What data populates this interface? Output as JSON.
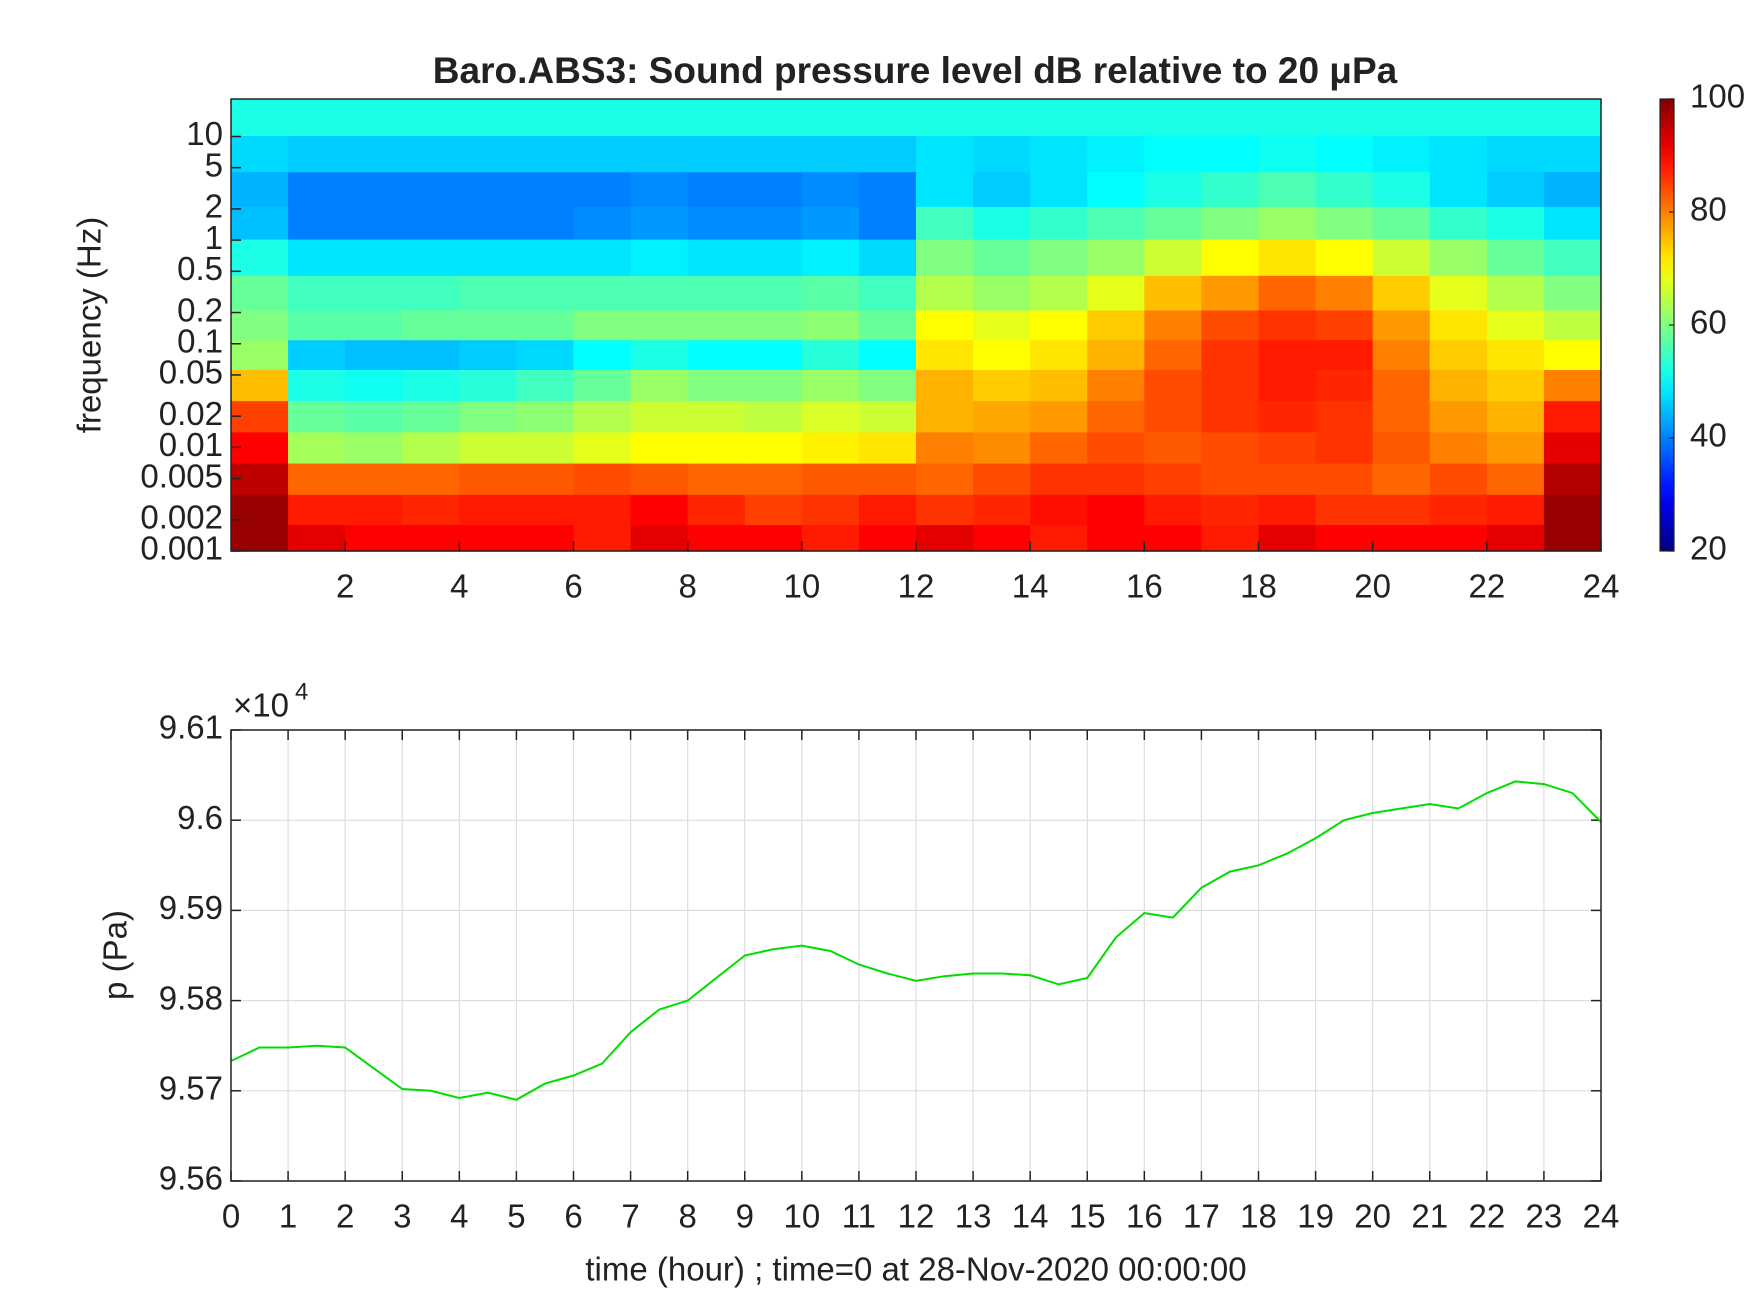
{
  "chart_data": [
    {
      "type": "heatmap",
      "title": "Baro.ABS3: Sound pressure level dB relative to 20 μPa",
      "ylabel": "frequency (Hz)",
      "colormap": "jet",
      "yscale": "log",
      "x": [
        0.5,
        1.5,
        2.5,
        3.5,
        4.5,
        5.5,
        6.5,
        7.5,
        8.5,
        9.5,
        10.5,
        11.5,
        12.5,
        13.5,
        14.5,
        15.5,
        16.5,
        17.5,
        18.5,
        19.5,
        20.5,
        21.5,
        22.5,
        23.5
      ],
      "y": [
        0.0013,
        0.0025,
        0.005,
        0.01,
        0.02,
        0.04,
        0.08,
        0.15,
        0.3,
        0.7,
        1.5,
        3,
        7,
        15
      ],
      "z": [
        [
          98,
          92,
          90,
          90,
          90,
          90,
          88,
          92,
          90,
          90,
          88,
          90,
          92,
          90,
          88,
          90,
          90,
          88,
          92,
          90,
          90,
          90,
          92,
          98
        ],
        [
          98,
          88,
          88,
          87,
          88,
          88,
          88,
          90,
          87,
          85,
          86,
          88,
          86,
          87,
          89,
          90,
          88,
          87,
          88,
          86,
          86,
          87,
          88,
          98
        ],
        [
          95,
          82,
          82,
          82,
          83,
          83,
          84,
          83,
          82,
          82,
          83,
          83,
          82,
          84,
          86,
          86,
          85,
          84,
          84,
          84,
          82,
          84,
          82,
          96
        ],
        [
          90,
          63,
          62,
          64,
          66,
          66,
          68,
          70,
          70,
          70,
          71,
          72,
          80,
          79,
          82,
          84,
          83,
          84,
          85,
          86,
          83,
          80,
          78,
          92
        ],
        [
          85,
          58,
          57,
          58,
          60,
          61,
          64,
          66,
          66,
          65,
          67,
          66,
          76,
          77,
          78,
          82,
          84,
          86,
          87,
          86,
          82,
          78,
          76,
          88
        ],
        [
          75,
          52,
          51,
          52,
          53,
          55,
          58,
          62,
          60,
          60,
          62,
          60,
          76,
          74,
          75,
          80,
          84,
          86,
          88,
          87,
          82,
          76,
          74,
          80
        ],
        [
          62,
          46,
          45,
          45,
          46,
          47,
          50,
          52,
          50,
          50,
          53,
          50,
          72,
          70,
          72,
          76,
          82,
          86,
          88,
          88,
          80,
          74,
          72,
          70
        ],
        [
          60,
          57,
          57,
          58,
          58,
          58,
          60,
          60,
          60,
          60,
          61,
          58,
          70,
          68,
          70,
          74,
          80,
          84,
          86,
          85,
          78,
          72,
          68,
          65
        ],
        [
          58,
          55,
          55,
          55,
          56,
          56,
          56,
          56,
          56,
          56,
          57,
          55,
          64,
          62,
          64,
          68,
          75,
          78,
          82,
          80,
          74,
          68,
          64,
          60
        ],
        [
          52,
          48,
          48,
          48,
          48,
          48,
          48,
          49,
          48,
          48,
          49,
          47,
          60,
          58,
          60,
          62,
          66,
          70,
          72,
          70,
          66,
          62,
          58,
          55
        ],
        [
          45,
          40,
          40,
          40,
          40,
          40,
          41,
          42,
          41,
          41,
          42,
          40,
          55,
          52,
          54,
          56,
          58,
          60,
          62,
          60,
          58,
          54,
          52,
          48
        ],
        [
          44,
          40,
          40,
          40,
          40,
          40,
          40,
          41,
          40,
          40,
          41,
          40,
          48,
          46,
          48,
          50,
          52,
          54,
          56,
          54,
          52,
          48,
          46,
          44
        ],
        [
          47,
          46,
          46,
          46,
          46,
          46,
          46,
          46,
          46,
          46,
          46,
          46,
          48,
          47,
          48,
          49,
          50,
          50,
          51,
          50,
          49,
          48,
          47,
          47
        ],
        [
          52,
          52,
          52,
          52,
          52,
          52,
          52,
          52,
          52,
          52,
          52,
          52,
          52,
          52,
          52,
          52,
          52,
          52,
          52,
          52,
          52,
          52,
          52,
          52
        ]
      ],
      "xlim": [
        0,
        24
      ],
      "xticks": [
        2,
        4,
        6,
        8,
        10,
        12,
        14,
        16,
        18,
        20,
        22,
        24
      ],
      "ylim": [
        0.001,
        23
      ],
      "yticks": [
        0.001,
        0.002,
        0.005,
        0.01,
        0.02,
        0.05,
        0.1,
        0.2,
        0.5,
        1,
        2,
        5,
        10
      ],
      "clim": [
        20,
        100
      ],
      "cticks": [
        20,
        40,
        60,
        80,
        100
      ]
    },
    {
      "type": "line",
      "xlabel": "time (hour) ; time=0 at 28-Nov-2020 00:00:00",
      "ylabel": "p (Pa)",
      "y_multiplier": {
        "base": "×10",
        "exponent": "4"
      },
      "color": "#00dd00",
      "grid": true,
      "x": [
        0,
        0.5,
        1,
        1.5,
        2,
        2.5,
        3,
        3.5,
        4,
        4.5,
        5,
        5.5,
        6,
        6.5,
        7,
        7.5,
        8,
        8.5,
        9,
        9.5,
        10,
        10.5,
        11,
        11.5,
        12,
        12.5,
        13,
        13.5,
        14,
        14.5,
        15,
        15.5,
        16,
        16.5,
        17,
        17.5,
        18,
        18.5,
        19,
        19.5,
        20,
        20.5,
        21,
        21.5,
        22,
        22.5,
        23,
        23.5,
        24
      ],
      "values": [
        95733,
        95748,
        95748,
        95750,
        95748,
        95725,
        95702,
        95700,
        95692,
        95698,
        95690,
        95708,
        95717,
        95730,
        95765,
        95790,
        95800,
        95825,
        95850,
        95857,
        95861,
        95855,
        95840,
        95830,
        95822,
        95827,
        95830,
        95830,
        95828,
        95818,
        95825,
        95870,
        95897,
        95892,
        95925,
        95943,
        95950,
        95963,
        95980,
        96000,
        96008,
        96013,
        96018,
        96013,
        96030,
        96043,
        96040,
        96030,
        95998
      ],
      "xlim": [
        0,
        24
      ],
      "xticks": [
        0,
        1,
        2,
        3,
        4,
        5,
        6,
        7,
        8,
        9,
        10,
        11,
        12,
        13,
        14,
        15,
        16,
        17,
        18,
        19,
        20,
        21,
        22,
        23,
        24
      ],
      "ylim": [
        95600,
        96100
      ],
      "yticks": [
        {
          "value": 95600,
          "label": "9.56"
        },
        {
          "value": 95700,
          "label": "9.57"
        },
        {
          "value": 95800,
          "label": "9.58"
        },
        {
          "value": 95900,
          "label": "9.59"
        },
        {
          "value": 96000,
          "label": "9.6"
        },
        {
          "value": 96100,
          "label": "9.61"
        }
      ]
    }
  ]
}
